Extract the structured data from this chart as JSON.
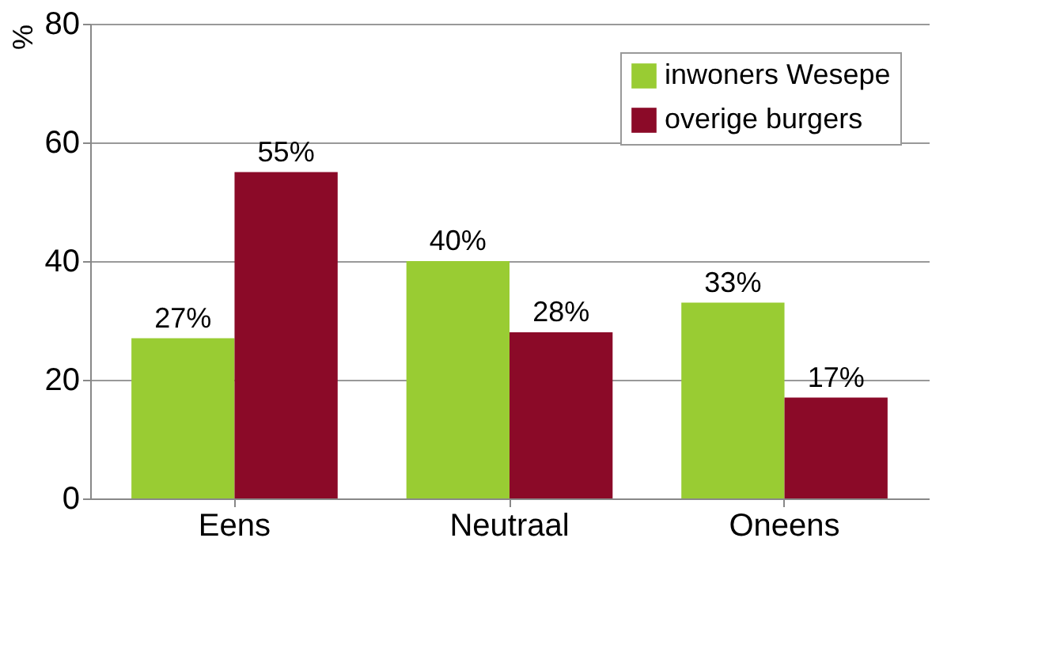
{
  "chart_data": {
    "type": "bar",
    "ylabel": "%",
    "categories": [
      "Eens",
      "Neutraal",
      "Oneens"
    ],
    "series": [
      {
        "name": "inwoners Wesepe",
        "color": "#99cc33",
        "values": [
          27,
          40,
          33
        ],
        "value_labels": [
          "27%",
          "40%",
          "33%"
        ]
      },
      {
        "name": "overige burgers",
        "color": "#8b0a28",
        "values": [
          55,
          28,
          17
        ],
        "value_labels": [
          "55%",
          "28%",
          "17%"
        ]
      }
    ],
    "ylim": [
      0,
      80
    ],
    "yticks": [
      0,
      20,
      40,
      60,
      80
    ],
    "grid": "y",
    "legend": "top right"
  }
}
